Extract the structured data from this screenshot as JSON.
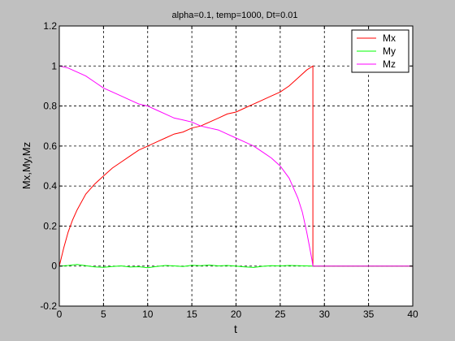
{
  "chart_data": {
    "type": "line",
    "title": "alpha=0.1, temp=1000, Dt=0.01",
    "xlabel": "t",
    "ylabel": "Mx,My,Mz",
    "xlim": [
      0,
      40
    ],
    "ylim": [
      -0.2,
      1.2
    ],
    "x_ticks": [
      0,
      5,
      10,
      15,
      20,
      25,
      30,
      35,
      40
    ],
    "y_ticks": [
      -0.2,
      0,
      0.2,
      0.4,
      0.6,
      0.8,
      1,
      1.2
    ],
    "x_tick_labels": [
      "0",
      "5",
      "10",
      "15",
      "20",
      "25",
      "30",
      "35",
      "40"
    ],
    "y_tick_labels": [
      "-0.2",
      "0",
      "0.2",
      "0.4",
      "0.6",
      "0.8",
      "1",
      "1.2"
    ],
    "grid": true,
    "legend_position": "top-right",
    "series": [
      {
        "name": "Mx",
        "color": "#ff0000",
        "x": [
          0,
          0.5,
          1,
          1.5,
          2,
          3,
          4,
          5,
          6,
          7,
          8,
          9,
          10,
          11,
          12,
          13,
          14,
          15,
          16,
          17,
          18,
          19,
          20,
          21,
          22,
          23,
          24,
          25,
          26,
          27,
          28,
          28.7,
          28.7,
          30,
          35,
          40
        ],
        "y": [
          0,
          0.09,
          0.17,
          0.23,
          0.28,
          0.36,
          0.41,
          0.45,
          0.49,
          0.52,
          0.55,
          0.58,
          0.6,
          0.62,
          0.64,
          0.66,
          0.67,
          0.69,
          0.7,
          0.72,
          0.74,
          0.76,
          0.77,
          0.79,
          0.81,
          0.83,
          0.85,
          0.87,
          0.9,
          0.94,
          0.98,
          1.0,
          0,
          0,
          0,
          0
        ]
      },
      {
        "name": "My",
        "color": "#00ff00",
        "x": [
          0,
          1,
          2,
          3,
          4,
          5,
          6,
          7,
          8,
          9,
          10,
          11,
          12,
          13,
          14,
          15,
          16,
          17,
          18,
          19,
          20,
          21,
          22,
          23,
          24,
          25,
          26,
          27,
          28,
          28.7,
          30,
          35,
          40
        ],
        "y": [
          0,
          0.003,
          0.008,
          0.002,
          -0.004,
          -0.006,
          -0.002,
          0.001,
          -0.005,
          -0.003,
          -0.008,
          -0.002,
          0.003,
          0.001,
          -0.002,
          0.004,
          0.002,
          0.005,
          0.001,
          0.003,
          0,
          -0.004,
          -0.007,
          -0.001,
          0.002,
          0.001,
          0.003,
          0.002,
          0.001,
          0,
          0,
          0,
          0
        ]
      },
      {
        "name": "Mz",
        "color": "#ff00ff",
        "x": [
          0,
          1,
          2,
          3,
          4,
          5,
          6,
          7,
          8,
          9,
          10,
          11,
          12,
          13,
          14,
          15,
          16,
          17,
          18,
          19,
          20,
          21,
          22,
          23,
          24,
          25,
          26,
          27,
          27.5,
          28,
          28.3,
          28.6,
          28.7,
          30,
          35,
          40
        ],
        "y": [
          1.0,
          0.99,
          0.97,
          0.95,
          0.92,
          0.89,
          0.87,
          0.85,
          0.83,
          0.81,
          0.8,
          0.78,
          0.76,
          0.74,
          0.73,
          0.72,
          0.7,
          0.69,
          0.68,
          0.66,
          0.64,
          0.62,
          0.6,
          0.57,
          0.54,
          0.5,
          0.44,
          0.34,
          0.27,
          0.17,
          0.1,
          0.03,
          0,
          0,
          0,
          0
        ]
      }
    ]
  }
}
